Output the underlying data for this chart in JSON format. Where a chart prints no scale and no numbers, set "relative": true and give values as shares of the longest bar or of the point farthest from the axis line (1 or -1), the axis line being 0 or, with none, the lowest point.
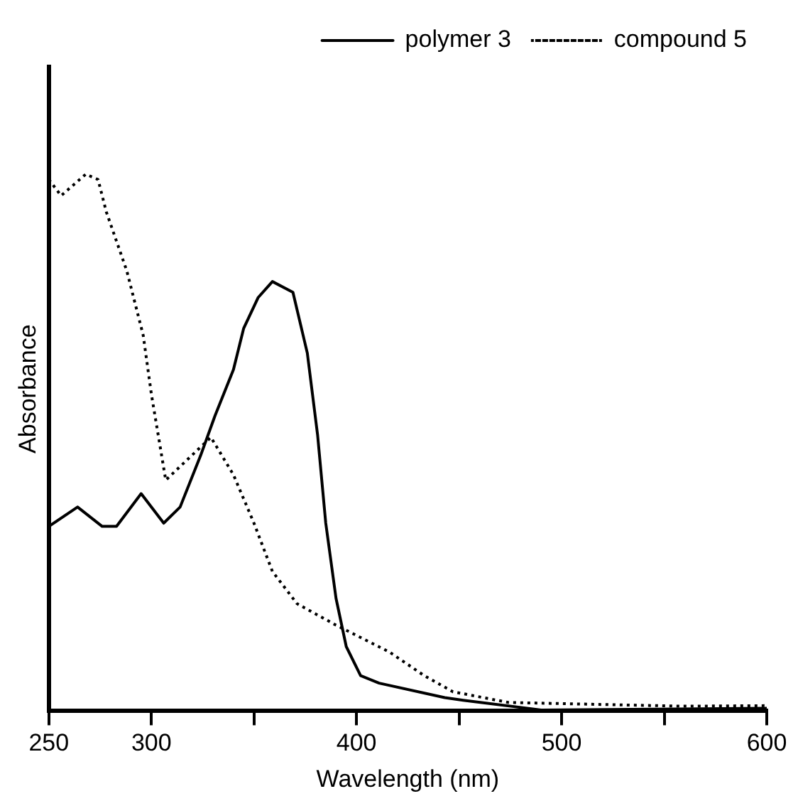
{
  "chart_data": {
    "type": "line",
    "xlabel": "Wavelength (nm)",
    "ylabel": "Absorbance",
    "relative": true,
    "xlim": [
      250,
      600
    ],
    "xticks": [
      250,
      300,
      {
        "value": 350,
        "label": null
      },
      400,
      {
        "value": 450,
        "label": null
      },
      500,
      {
        "value": 550,
        "label": null
      },
      600
    ],
    "grid": false,
    "legend": "top right",
    "marker": "none",
    "series": [
      {
        "name": "polymer 3",
        "color": "#000000",
        "line_style": "solid",
        "x": [
          250,
          264,
          276,
          283,
          295,
          306,
          314,
          324,
          331,
          340,
          345,
          352,
          359,
          369,
          376,
          381,
          385,
          390,
          395,
          402,
          411,
          443,
          452,
          490,
          600
        ],
        "values": [
          0.344,
          0.38,
          0.344,
          0.344,
          0.405,
          0.35,
          0.38,
          0.476,
          0.55,
          0.636,
          0.713,
          0.77,
          0.8,
          0.78,
          0.667,
          0.515,
          0.35,
          0.21,
          0.12,
          0.066,
          0.052,
          0.025,
          0.02,
          0.002,
          0.005
        ]
      },
      {
        "name": "compound 5",
        "color": "#000000",
        "line_style": "dotted",
        "x": [
          250,
          256,
          268,
          274,
          278,
          288,
          296,
          300,
          307,
          329,
          340,
          350,
          359,
          371,
          390,
          416,
          433,
          447,
          474,
          559,
          600
        ],
        "values": [
          0.99,
          0.96,
          1.0,
          0.99,
          0.93,
          0.82,
          0.7,
          0.59,
          0.43,
          0.51,
          0.44,
          0.35,
          0.26,
          0.2,
          0.16,
          0.11,
          0.066,
          0.036,
          0.016,
          0.009,
          0.01
        ]
      }
    ]
  }
}
